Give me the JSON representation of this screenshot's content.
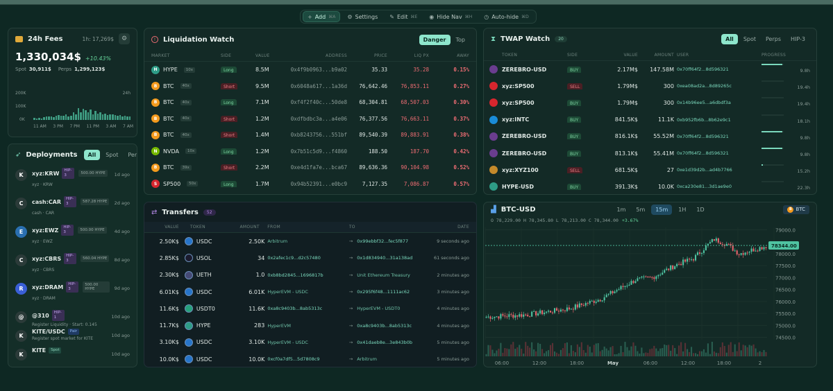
{
  "toolbar": {
    "add": "Add",
    "add_kbd": "⌘A",
    "settings": "Settings",
    "edit": "Edit",
    "edit_kbd": "⌘E",
    "hide_nav": "Hide Nav",
    "hide_nav_kbd": "⌘H",
    "auto_hide": "Auto-hide",
    "auto_hide_kbd": "⌘D"
  },
  "fees": {
    "title": "24h Fees",
    "period": "1h: 17,269$",
    "total": "1,330,034$",
    "change": "+10.43%",
    "spot_label": "Spot",
    "spot_value": "30,911$",
    "perps_label": "Perps",
    "perps_value": "1,299,123$",
    "y_ticks": [
      "200K",
      "100K",
      "0K"
    ],
    "corner": "24h",
    "x_ticks": [
      "11 AM",
      "3 PM",
      "7 PM",
      "11 PM",
      "3 AM",
      "7 AM"
    ],
    "bars": [
      0.08,
      0.06,
      0.07,
      0.06,
      0.1,
      0.12,
      0.14,
      0.13,
      0.11,
      0.16,
      0.18,
      0.15,
      0.17,
      0.2,
      0.14,
      0.16,
      0.28,
      0.22,
      0.45,
      0.3,
      0.42,
      0.36,
      0.3,
      0.4,
      0.22,
      0.33,
      0.25,
      0.28,
      0.2,
      0.24,
      0.18,
      0.22,
      0.2,
      0.19,
      0.15,
      0.18,
      0.14,
      0.17,
      0.12,
      0.13
    ]
  },
  "deployments": {
    "title": "Deployments",
    "tabs": [
      "All",
      "Spot",
      "Perps"
    ],
    "items": [
      {
        "avatar": "K",
        "name": "xyz:KRW",
        "tag": "HIP-3",
        "amount": "500.00 HYPE",
        "sub": "xyz · KRW",
        "time": "1d ago"
      },
      {
        "avatar": "C",
        "name": "cash:CAR",
        "tag": "HIP-3",
        "amount": "587.28 HYPE",
        "sub": "cash · CAR",
        "time": "2d ago"
      },
      {
        "avatar": "E",
        "name": "xyz:EWZ",
        "tag": "HIP-3",
        "amount": "500.00 HYPE",
        "sub": "xyz · EWZ",
        "time": "4d ago"
      },
      {
        "avatar": "C",
        "name": "xyz:CBRS",
        "tag": "HIP-3",
        "amount": "560.04 HYPE",
        "sub": "xyz · CBRS",
        "time": "8d ago"
      },
      {
        "avatar": "R",
        "name": "xyz:DRAM",
        "tag": "HIP-3",
        "amount": "500.00 HYPE",
        "sub": "xyz · DRAM",
        "time": "9d ago"
      },
      {
        "avatar": "@",
        "name": "@310",
        "tag": "HIP-1",
        "amount": "",
        "sub": "Register Liquidity · Start: 0.145",
        "time": "10d ago"
      },
      {
        "avatar": "K",
        "name": "KITE/USDC",
        "tag": "Pair",
        "amount": "",
        "sub": "Register spot market for KITE",
        "time": "10d ago"
      },
      {
        "avatar": "K",
        "name": "KITE",
        "tag": "Spot",
        "amount": "",
        "sub": "",
        "time": "10d ago"
      }
    ]
  },
  "liq": {
    "title": "Liquidation Watch",
    "tabs": [
      "Danger",
      "Top"
    ],
    "columns": [
      "Market",
      "Side",
      "Value",
      "Address",
      "Price",
      "Liq Px",
      "Away"
    ],
    "rows": [
      {
        "icon": "H",
        "color": "#2e9c86",
        "market": "HYPE",
        "lev": "10x",
        "side": "Long",
        "value": "8.5M",
        "address": "0x4f9b0963...b9a02",
        "price": "35.33",
        "liq": "35.28",
        "away": "0.15%"
      },
      {
        "icon": "B",
        "color": "#f39a1d",
        "market": "BTC",
        "lev": "40x",
        "side": "Short",
        "value": "9.5M",
        "address": "0x6048a617...1a36d",
        "price": "76,642.46",
        "liq": "76,853.11",
        "away": "0.27%"
      },
      {
        "icon": "B",
        "color": "#f39a1d",
        "market": "BTC",
        "lev": "40x",
        "side": "Long",
        "value": "7.1M",
        "address": "0xf4f2f40c...50de8",
        "price": "68,304.81",
        "liq": "68,507.03",
        "away": "0.30%"
      },
      {
        "icon": "B",
        "color": "#f39a1d",
        "market": "BTC",
        "lev": "40x",
        "side": "Short",
        "value": "1.2M",
        "address": "0xdfbdbc3a...a4e06",
        "price": "76,377.56",
        "liq": "76,663.11",
        "away": "0.37%"
      },
      {
        "icon": "B",
        "color": "#f39a1d",
        "market": "BTC",
        "lev": "40x",
        "side": "Short",
        "value": "1.4M",
        "address": "0xb8243756...551bf",
        "price": "89,540.39",
        "liq": "89,883.91",
        "away": "0.38%"
      },
      {
        "icon": "N",
        "color": "#76b900",
        "market": "NVDA",
        "lev": "10x",
        "side": "Long",
        "value": "1.2M",
        "address": "0x7b51c5d9...f4860",
        "price": "188.50",
        "liq": "187.70",
        "away": "0.42%"
      },
      {
        "icon": "B",
        "color": "#f39a1d",
        "market": "BTC",
        "lev": "39x",
        "side": "Short",
        "value": "2.2M",
        "address": "0xe4d1fa7e...bca67",
        "price": "89,636.36",
        "liq": "90,104.98",
        "away": "0.52%"
      },
      {
        "icon": "S",
        "color": "#d7262e",
        "market": "SP500",
        "lev": "50x",
        "side": "Long",
        "value": "1.7M",
        "address": "0x94b52391...e0bc9",
        "price": "7,127.35",
        "liq": "7,086.87",
        "away": "0.57%"
      }
    ]
  },
  "transfers": {
    "title": "Transfers",
    "count": "52",
    "columns": [
      "Value",
      "Token",
      "Amount",
      "From",
      "To",
      "Date"
    ],
    "rows": [
      {
        "value": "2.50K$",
        "token": "USDC",
        "icon": "#2775ca",
        "amount": "2.50K",
        "from": "Arbitrum",
        "to": "0x99ebbf32...fec5f877",
        "date": "9 seconds ago"
      },
      {
        "value": "2.85K$",
        "token": "USOL",
        "icon": "#1b1b2e",
        "amount": "34",
        "from": "0x2afec1c9...d2c57480",
        "to": "0x1d834940...31a138ad",
        "date": "61 seconds ago"
      },
      {
        "value": "2.30K$",
        "token": "UETH",
        "icon": "#454a75",
        "amount": "1.0",
        "from": "0xb8bd2845...1696817b",
        "to": "Unit Ethereum Treasury",
        "date": "2 minutes ago"
      },
      {
        "value": "6.01K$",
        "token": "USDC",
        "icon": "#2775ca",
        "amount": "6.01K",
        "from": "HyperEVM - USDC",
        "to": "0x295f6f48...1111ac62",
        "date": "3 minutes ago"
      },
      {
        "value": "11.6K$",
        "token": "USDT0",
        "icon": "#26a17b",
        "amount": "11.6K",
        "from": "0xa8c9403b...8ab5313c",
        "to": "HyperEVM - USDT0",
        "date": "4 minutes ago"
      },
      {
        "value": "11.7K$",
        "token": "HYPE",
        "icon": "#2e9c86",
        "amount": "283",
        "from": "HyperEVM",
        "to": "0xa8c9403b...8ab5313c",
        "date": "4 minutes ago"
      },
      {
        "value": "3.10K$",
        "token": "USDC",
        "icon": "#2775ca",
        "amount": "3.10K",
        "from": "HyperEVM - USDC",
        "to": "0x41daeb8e...3e843b0b",
        "date": "5 minutes ago"
      },
      {
        "value": "10.0K$",
        "token": "USDC",
        "icon": "#2775ca",
        "amount": "10.0K",
        "from": "0xcf0a7df5...5d7808c9",
        "to": "Arbitrum",
        "date": "5 minutes ago"
      }
    ]
  },
  "twap": {
    "title": "TWAP Watch",
    "count": "20",
    "tabs": [
      "All",
      "Spot",
      "Perps",
      "HIP-3"
    ],
    "columns": [
      "Token",
      "Side",
      "Value",
      "Amount",
      "User",
      "Progress"
    ],
    "rows": [
      {
        "icon": "#6a3d8f",
        "token": "ZEREBRO-USD",
        "side": "BUY",
        "value": "2.17M$",
        "amount": "147.58M",
        "user": "0x70ff64f2...8d596321",
        "progress": 0.95,
        "time": "9.8h"
      },
      {
        "icon": "#d7262e",
        "token": "xyz:SP500",
        "side": "SELL",
        "value": "1.79M$",
        "amount": "300",
        "user": "0xea08ad2a...8d89265c",
        "progress": 0.0,
        "time": "19.4h"
      },
      {
        "icon": "#d7262e",
        "token": "xyz:SP500",
        "side": "BUY",
        "value": "1.79M$",
        "amount": "300",
        "user": "0x14b96ee5...a6dbdf3a",
        "progress": 0.0,
        "time": "19.4h"
      },
      {
        "icon": "#1a8cd8",
        "token": "xyz:INTC",
        "side": "BUY",
        "value": "841.5K$",
        "amount": "11.1K",
        "user": "0xb952fb6b...8b62e9c1",
        "progress": 0.0,
        "time": "18.1h"
      },
      {
        "icon": "#6a3d8f",
        "token": "ZEREBRO-USD",
        "side": "BUY",
        "value": "816.1K$",
        "amount": "55.52M",
        "user": "0x70ff64f2...8d596321",
        "progress": 0.95,
        "time": "9.8h"
      },
      {
        "icon": "#6a3d8f",
        "token": "ZEREBRO-USD",
        "side": "BUY",
        "value": "813.1K$",
        "amount": "55.41M",
        "user": "0x70ff64f2...8d596321",
        "progress": 0.95,
        "time": "9.8h"
      },
      {
        "icon": "#c58a2b",
        "token": "xyz:XYZ100",
        "side": "SELL",
        "value": "681.5K$",
        "amount": "27",
        "user": "0xe1d39d2b...ad4b7766",
        "progress": 0.05,
        "time": "15.2h"
      },
      {
        "icon": "#2e9c86",
        "token": "HYPE-USD",
        "side": "BUY",
        "value": "391.3K$",
        "amount": "10.0K",
        "user": "0xca230e81...3d1ae9e0",
        "progress": 0.0,
        "time": "22.3h"
      }
    ]
  },
  "btc": {
    "title": "BTC-USD",
    "timeframes": [
      "1m",
      "5m",
      "15m",
      "1H",
      "1D"
    ],
    "active": "15m",
    "badge": "BTC",
    "ohlc": "O 78,229.00  H 78,345.80  L 78,213.00  C 78,344.00",
    "change": "+3.67%",
    "y_ticks": [
      "79000.0",
      "78000.0",
      "77500.0",
      "77000.0",
      "76500.0",
      "76000.0",
      "75500.0",
      "75000.0",
      "74500.0"
    ],
    "last_price": "78344.00",
    "x_ticks": [
      "06:00",
      "12:00",
      "18:00",
      "May",
      "06:00",
      "12:00",
      "18:00",
      "2"
    ]
  }
}
